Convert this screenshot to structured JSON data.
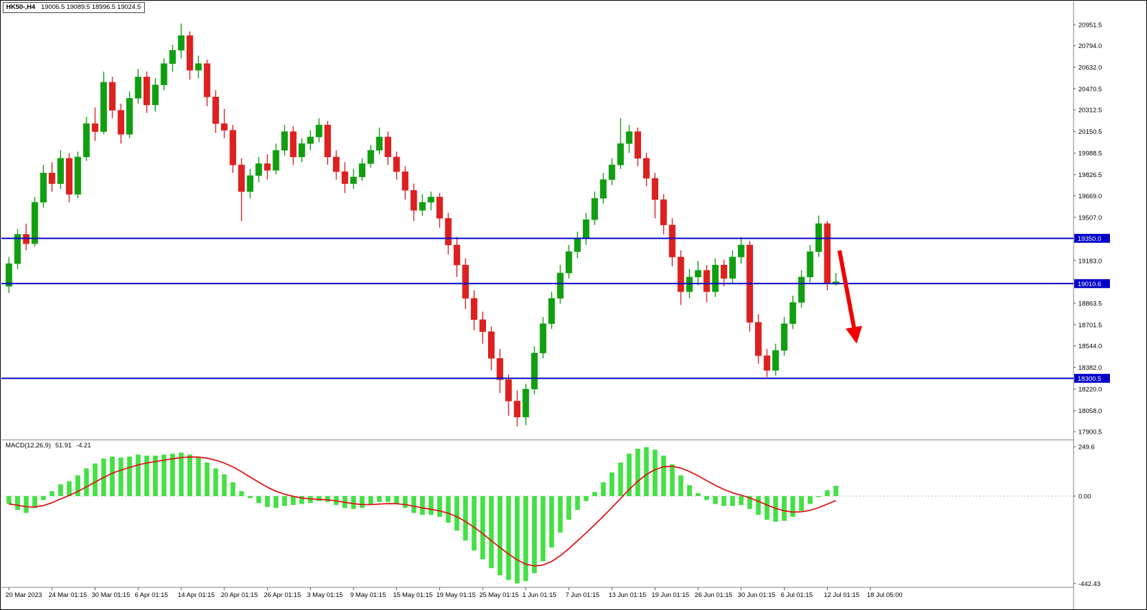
{
  "header": {
    "symbol_period": "HK50-,H4",
    "ohlc": "19006.5 19089.5 18996.5 19024.5"
  },
  "macd_panel": {
    "name": "MACD(12,26,9)",
    "value": "51.91",
    "signal_value": "-4.21"
  },
  "colors": {
    "bull": "#119e11",
    "bear": "#dd2020",
    "histogram": "#44e044",
    "signal": "#dc1414",
    "level_line": "#0000c8",
    "arrow": "#f20000",
    "axis_text": "#000000",
    "divider": "#808080",
    "background": "#ffffff"
  },
  "price_axis": {
    "ticks": [
      "20951.5",
      "20794.0",
      "20632.0",
      "20470.5",
      "20312.5",
      "20150.5",
      "19988.5",
      "19826.5",
      "19669.0",
      "19507.0",
      "19183.0",
      "18863.5",
      "18701.5",
      "18544.0",
      "18382.0",
      "18220.0",
      "18058.0",
      "17900.5"
    ]
  },
  "level_lines": [
    {
      "label": "19350.0",
      "value": 19350.0
    },
    {
      "label": "19010.6",
      "value": 19010.6
    },
    {
      "label": "18300.5",
      "value": 18300.5
    }
  ],
  "macd_axis": [
    {
      "label": "249.6",
      "value": 249.6
    },
    {
      "label": "0.00",
      "value": 0
    },
    {
      "label": "-442.43",
      "value": -442.43
    }
  ],
  "time_axis": [
    "20 Mar 2023",
    "24 Mar 01:15",
    "30 Mar 01:15",
    "6 Apr 01:15",
    "14 Apr 01:15",
    "20 Apr 01:15",
    "26 Apr 01:15",
    "3 May 01:15",
    "9 May 01:15",
    "15 May 01:15",
    "19 May 01:15",
    "25 May 01:15",
    "1 Jun 01:15",
    "7 Jun 01:15",
    "13 Jun 01:15",
    "19 Jun 01:15",
    "26 Jun 01:15",
    "30 Jun 01:15",
    "6 Jul 01:15",
    "12 Jul 01:15",
    "18 Jul 05:00"
  ],
  "chart_data": {
    "type": "candlestick",
    "symbol": "HK50-",
    "timeframe": "H4",
    "last_bar": {
      "open": 19006.5,
      "high": 19089.5,
      "low": 18996.5,
      "close": 19024.5
    },
    "price_range_shown": [
      17900.5,
      20951.5
    ],
    "candles": [
      [
        18990,
        19210,
        18940,
        19160
      ],
      [
        19160,
        19420,
        19120,
        19380
      ],
      [
        19380,
        19460,
        19260,
        19310
      ],
      [
        19310,
        19660,
        19290,
        19620
      ],
      [
        19620,
        19900,
        19580,
        19840
      ],
      [
        19840,
        19920,
        19700,
        19760
      ],
      [
        19760,
        20010,
        19720,
        19950
      ],
      [
        19950,
        19990,
        19620,
        19680
      ],
      [
        19680,
        20000,
        19650,
        19960
      ],
      [
        19960,
        20260,
        19930,
        20210
      ],
      [
        20210,
        20330,
        20080,
        20150
      ],
      [
        20150,
        20600,
        20130,
        20520
      ],
      [
        20520,
        20560,
        20250,
        20310
      ],
      [
        20310,
        20360,
        20060,
        20130
      ],
      [
        20130,
        20450,
        20100,
        20400
      ],
      [
        20400,
        20620,
        20360,
        20560
      ],
      [
        20560,
        20600,
        20290,
        20350
      ],
      [
        20350,
        20550,
        20300,
        20500
      ],
      [
        20500,
        20700,
        20460,
        20660
      ],
      [
        20660,
        20800,
        20600,
        20760
      ],
      [
        20760,
        20960,
        20700,
        20870
      ],
      [
        20870,
        20900,
        20540,
        20610
      ],
      [
        20610,
        20720,
        20550,
        20660
      ],
      [
        20660,
        20690,
        20340,
        20410
      ],
      [
        20410,
        20460,
        20140,
        20210
      ],
      [
        20210,
        20320,
        20100,
        20160
      ],
      [
        20160,
        20200,
        19840,
        19900
      ],
      [
        19900,
        19950,
        19480,
        19700
      ],
      [
        19700,
        19870,
        19650,
        19820
      ],
      [
        19820,
        19960,
        19770,
        19910
      ],
      [
        19910,
        19980,
        19790,
        19860
      ],
      [
        19860,
        20060,
        19830,
        20010
      ],
      [
        20010,
        20200,
        19970,
        20150
      ],
      [
        20150,
        20190,
        19900,
        19960
      ],
      [
        19960,
        20100,
        19920,
        20060
      ],
      [
        20060,
        20160,
        20010,
        20110
      ],
      [
        20110,
        20250,
        20070,
        20200
      ],
      [
        20200,
        20230,
        19900,
        19960
      ],
      [
        19960,
        20010,
        19790,
        19850
      ],
      [
        19850,
        19920,
        19690,
        19760
      ],
      [
        19760,
        19870,
        19720,
        19810
      ],
      [
        19810,
        19950,
        19780,
        19910
      ],
      [
        19910,
        20050,
        19880,
        20010
      ],
      [
        20010,
        20180,
        19980,
        20110
      ],
      [
        20110,
        20150,
        19900,
        19960
      ],
      [
        19960,
        20000,
        19790,
        19850
      ],
      [
        19850,
        19890,
        19640,
        19710
      ],
      [
        19710,
        19760,
        19480,
        19560
      ],
      [
        19560,
        19680,
        19520,
        19620
      ],
      [
        19620,
        19700,
        19560,
        19660
      ],
      [
        19660,
        19690,
        19430,
        19500
      ],
      [
        19500,
        19540,
        19230,
        19300
      ],
      [
        19300,
        19360,
        19060,
        19150
      ],
      [
        19150,
        19200,
        18820,
        18900
      ],
      [
        18900,
        18960,
        18660,
        18740
      ],
      [
        18740,
        18800,
        18560,
        18650
      ],
      [
        18650,
        18690,
        18360,
        18450
      ],
      [
        18450,
        18520,
        18190,
        18290
      ],
      [
        18290,
        18330,
        18020,
        18130
      ],
      [
        18130,
        18210,
        17940,
        18010
      ],
      [
        18010,
        18260,
        17950,
        18220
      ],
      [
        18220,
        18540,
        18180,
        18490
      ],
      [
        18490,
        18760,
        18450,
        18710
      ],
      [
        18710,
        18950,
        18670,
        18900
      ],
      [
        18900,
        19150,
        18860,
        19090
      ],
      [
        19090,
        19300,
        19050,
        19250
      ],
      [
        19250,
        19400,
        19200,
        19350
      ],
      [
        19350,
        19540,
        19300,
        19490
      ],
      [
        19490,
        19700,
        19450,
        19650
      ],
      [
        19650,
        19840,
        19610,
        19790
      ],
      [
        19790,
        19950,
        19750,
        19900
      ],
      [
        19900,
        20250,
        19870,
        20060
      ],
      [
        20060,
        20200,
        19990,
        20150
      ],
      [
        20150,
        20180,
        19890,
        19950
      ],
      [
        19950,
        19990,
        19740,
        19800
      ],
      [
        19800,
        19840,
        19500,
        19640
      ],
      [
        19640,
        19680,
        19380,
        19450
      ],
      [
        19450,
        19500,
        19140,
        19210
      ],
      [
        19210,
        19260,
        18850,
        18950
      ],
      [
        18950,
        19120,
        18900,
        19060
      ],
      [
        19060,
        19180,
        19000,
        19110
      ],
      [
        19110,
        19150,
        18870,
        18950
      ],
      [
        18950,
        19200,
        18910,
        19150
      ],
      [
        19150,
        19190,
        18990,
        19050
      ],
      [
        19050,
        19260,
        19010,
        19210
      ],
      [
        19210,
        19360,
        19160,
        19300
      ],
      [
        19300,
        19330,
        18650,
        18720
      ],
      [
        18720,
        18780,
        18410,
        18470
      ],
      [
        18470,
        18520,
        18310,
        18360
      ],
      [
        18360,
        18560,
        18320,
        18510
      ],
      [
        18510,
        18760,
        18470,
        18710
      ],
      [
        18710,
        18920,
        18670,
        18870
      ],
      [
        18870,
        19110,
        18830,
        19060
      ],
      [
        19060,
        19300,
        19020,
        19250
      ],
      [
        19250,
        19520,
        19210,
        19460
      ],
      [
        19460,
        19480,
        18960,
        19010
      ],
      [
        19006.5,
        19089.5,
        18996.5,
        19024.5
      ]
    ],
    "indicator": {
      "type": "macd",
      "params": [
        12,
        26,
        9
      ],
      "range": [
        -442.43,
        249.6
      ],
      "last_value": 51.91,
      "last_signal": -4.21,
      "histogram": [
        -40,
        -70,
        -85,
        -60,
        -20,
        25,
        60,
        75,
        105,
        140,
        165,
        190,
        200,
        195,
        200,
        210,
        205,
        205,
        210,
        215,
        220,
        210,
        195,
        170,
        140,
        110,
        70,
        25,
        -10,
        -35,
        -55,
        -60,
        -50,
        -45,
        -40,
        -35,
        -25,
        -30,
        -45,
        -60,
        -65,
        -60,
        -45,
        -30,
        -30,
        -40,
        -60,
        -85,
        -95,
        -95,
        -105,
        -135,
        -175,
        -225,
        -275,
        -320,
        -365,
        -400,
        -425,
        -442,
        -430,
        -390,
        -330,
        -260,
        -185,
        -120,
        -70,
        -25,
        20,
        70,
        120,
        170,
        215,
        240,
        248,
        235,
        205,
        160,
        105,
        55,
        15,
        -20,
        -40,
        -50,
        -50,
        -45,
        -65,
        -95,
        -120,
        -130,
        -125,
        -105,
        -75,
        -40,
        -5,
        30,
        52
      ]
    },
    "annotations": [
      {
        "type": "arrow",
        "direction": "down-right",
        "from_price": 19300,
        "to_price": 18560
      }
    ]
  }
}
